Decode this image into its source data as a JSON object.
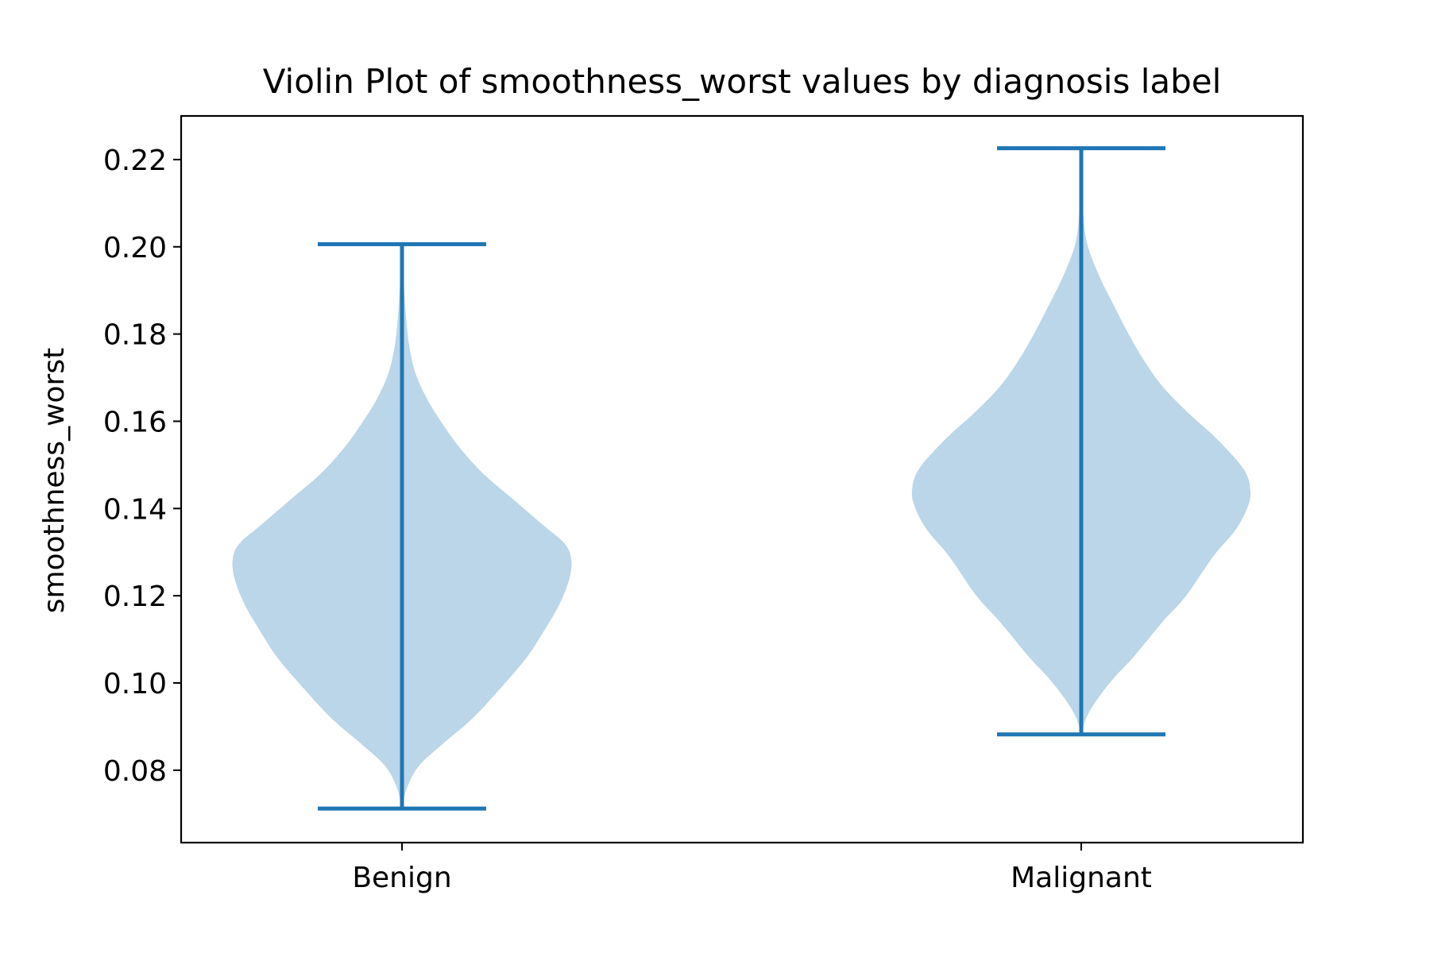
{
  "chart_data": {
    "type": "violin",
    "title": "Violin Plot of smoothness_worst values by diagnosis label",
    "xlabel": "",
    "ylabel": "smoothness_worst",
    "categories": [
      "Benign",
      "Malignant"
    ],
    "ylim": [
      0.0634,
      0.23
    ],
    "yticks": [
      0.08,
      0.1,
      0.12,
      0.14,
      0.16,
      0.18,
      0.2,
      0.22
    ],
    "ytick_labels": [
      "0.08",
      "0.10",
      "0.12",
      "0.14",
      "0.16",
      "0.18",
      "0.20",
      "0.22"
    ],
    "grid": false,
    "colors": {
      "body": "#bbd6e8",
      "lines": "#1f77b4",
      "axes": "#000000"
    },
    "violins": [
      {
        "category": "Benign",
        "min": 0.0712,
        "max": 0.2006,
        "density_profile": [
          {
            "y": 0.0712,
            "w": 0.0
          },
          {
            "y": 0.076,
            "w": 0.03
          },
          {
            "y": 0.081,
            "w": 0.1
          },
          {
            "y": 0.086,
            "w": 0.24
          },
          {
            "y": 0.092,
            "w": 0.42
          },
          {
            "y": 0.1,
            "w": 0.61
          },
          {
            "y": 0.106,
            "w": 0.74
          },
          {
            "y": 0.112,
            "w": 0.84
          },
          {
            "y": 0.118,
            "w": 0.93
          },
          {
            "y": 0.124,
            "w": 0.99
          },
          {
            "y": 0.1285,
            "w": 1.0
          },
          {
            "y": 0.132,
            "w": 0.96
          },
          {
            "y": 0.136,
            "w": 0.84
          },
          {
            "y": 0.142,
            "w": 0.66
          },
          {
            "y": 0.148,
            "w": 0.48
          },
          {
            "y": 0.154,
            "w": 0.34
          },
          {
            "y": 0.16,
            "w": 0.23
          },
          {
            "y": 0.165,
            "w": 0.15
          },
          {
            "y": 0.171,
            "w": 0.08
          },
          {
            "y": 0.178,
            "w": 0.04
          },
          {
            "y": 0.186,
            "w": 0.02
          },
          {
            "y": 0.194,
            "w": 0.008
          },
          {
            "y": 0.2006,
            "w": 0.0
          }
        ]
      },
      {
        "category": "Malignant",
        "min": 0.0882,
        "max": 0.2226,
        "density_profile": [
          {
            "y": 0.0882,
            "w": 0.0
          },
          {
            "y": 0.092,
            "w": 0.03
          },
          {
            "y": 0.096,
            "w": 0.09
          },
          {
            "y": 0.101,
            "w": 0.19
          },
          {
            "y": 0.106,
            "w": 0.31
          },
          {
            "y": 0.114,
            "w": 0.48
          },
          {
            "y": 0.12,
            "w": 0.62
          },
          {
            "y": 0.129,
            "w": 0.78
          },
          {
            "y": 0.135,
            "w": 0.91
          },
          {
            "y": 0.14,
            "w": 0.98
          },
          {
            "y": 0.144,
            "w": 1.0
          },
          {
            "y": 0.149,
            "w": 0.96
          },
          {
            "y": 0.156,
            "w": 0.8
          },
          {
            "y": 0.162,
            "w": 0.63
          },
          {
            "y": 0.168,
            "w": 0.48
          },
          {
            "y": 0.174,
            "w": 0.37
          },
          {
            "y": 0.18,
            "w": 0.28
          },
          {
            "y": 0.186,
            "w": 0.2
          },
          {
            "y": 0.193,
            "w": 0.11
          },
          {
            "y": 0.2,
            "w": 0.04
          },
          {
            "y": 0.206,
            "w": 0.015
          },
          {
            "y": 0.215,
            "w": 0.006
          },
          {
            "y": 0.2226,
            "w": 0.0
          }
        ]
      }
    ]
  }
}
